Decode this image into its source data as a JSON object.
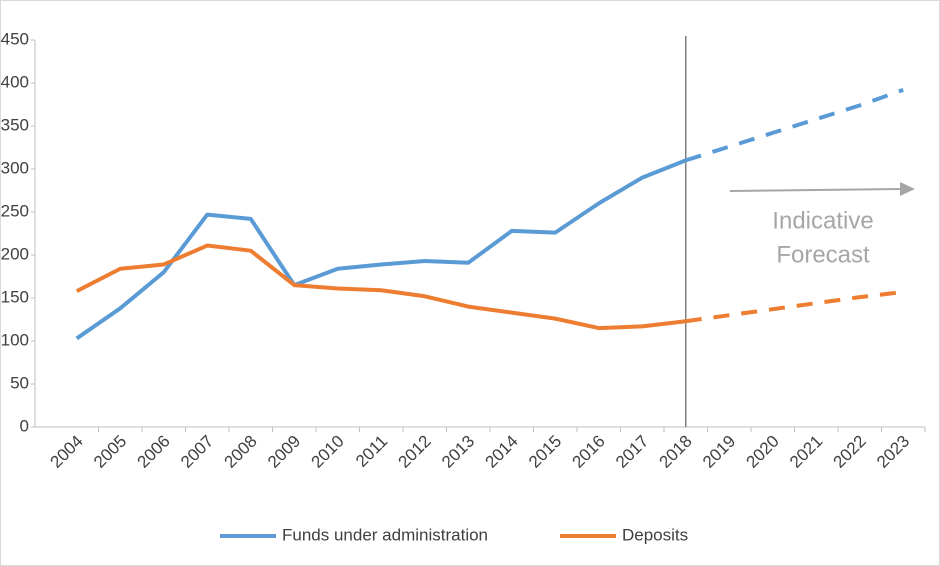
{
  "chart_data": {
    "type": "line",
    "categories": [
      "2004",
      "2005",
      "2006",
      "2007",
      "2008",
      "2009",
      "2010",
      "2011",
      "2012",
      "2013",
      "2014",
      "2015",
      "2016",
      "2017",
      "2018",
      "2019",
      "2020",
      "2021",
      "2022",
      "2023"
    ],
    "series": [
      {
        "name": "Funds under administration",
        "color": "#5b9bd5",
        "values": [
          103,
          138,
          180,
          247,
          242,
          165,
          184,
          189,
          193,
          191,
          228,
          226,
          260,
          290,
          310,
          null,
          null,
          null,
          null,
          null
        ],
        "forecast_values": [
          null,
          null,
          null,
          null,
          null,
          null,
          null,
          null,
          null,
          null,
          null,
          null,
          null,
          null,
          310,
          326,
          342,
          358,
          374,
          392
        ]
      },
      {
        "name": "Deposits",
        "color": "#ed7d31",
        "values": [
          158,
          184,
          189,
          211,
          205,
          165,
          161,
          159,
          152,
          140,
          133,
          126,
          115,
          117,
          123,
          null,
          null,
          null,
          null,
          null
        ],
        "forecast_values": [
          null,
          null,
          null,
          null,
          null,
          null,
          null,
          null,
          null,
          null,
          null,
          null,
          null,
          null,
          123,
          130,
          137,
          144,
          151,
          157
        ]
      }
    ],
    "annotation": [
      "Indicative",
      "Forecast"
    ],
    "ylim": [
      0,
      450
    ],
    "yticks": [
      0,
      50,
      100,
      150,
      200,
      250,
      300,
      350,
      400,
      450
    ],
    "legend": "bottom"
  }
}
